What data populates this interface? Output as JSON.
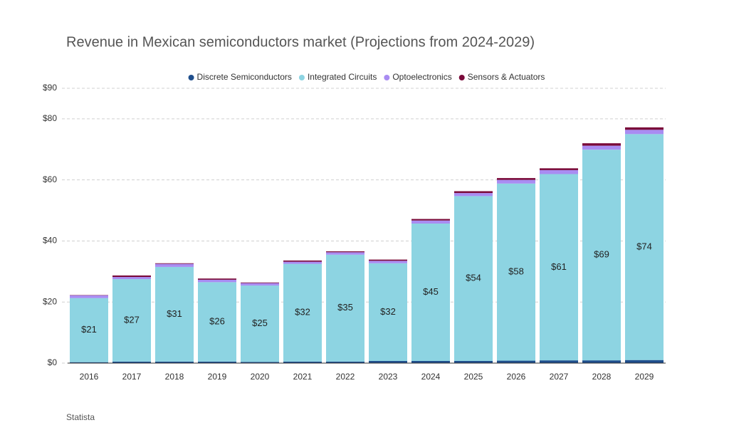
{
  "chart_data": {
    "type": "stacked_bar",
    "title": "Revenue in Mexican semiconductors market (Projections from 2024-2029)",
    "source": "Statista",
    "categories": [
      "2016",
      "2017",
      "2018",
      "2019",
      "2020",
      "2021",
      "2022",
      "2023",
      "2024",
      "2025",
      "2026",
      "2027",
      "2028",
      "2029"
    ],
    "series": [
      {
        "name": "Discrete Semiconductors",
        "color": "#1f4e8c",
        "values": [
          0.3,
          0.5,
          0.5,
          0.5,
          0.4,
          0.5,
          0.5,
          0.7,
          0.7,
          0.7,
          0.8,
          0.9,
          0.9,
          1.0
        ]
      },
      {
        "name": "Integrated Circuits",
        "color": "#8dd4e2",
        "values": [
          21,
          27,
          31,
          26,
          25,
          32,
          35,
          32,
          45,
          54,
          58,
          61,
          69,
          74
        ],
        "value_labels": [
          "$21",
          "$27",
          "$31",
          "$26",
          "$25",
          "$32",
          "$35",
          "$32",
          "$45",
          "$54",
          "$58",
          "$61",
          "$69",
          "$74"
        ]
      },
      {
        "name": "Optoelectronics",
        "color": "#a98cf2",
        "values": [
          0.9,
          0.7,
          1.0,
          0.8,
          0.8,
          0.7,
          0.8,
          0.8,
          1.0,
          1.0,
          1.2,
          1.3,
          1.3,
          1.4
        ]
      },
      {
        "name": "Sensors & Actuators",
        "color": "#7a0a3a",
        "values": [
          0.1,
          0.5,
          0.2,
          0.4,
          0.2,
          0.4,
          0.3,
          0.4,
          0.5,
          0.6,
          0.6,
          0.6,
          0.8,
          0.8
        ]
      }
    ],
    "ylim": [
      0,
      90
    ],
    "yticks": [
      {
        "value": 0,
        "label": "$0"
      },
      {
        "value": 20,
        "label": "$20"
      },
      {
        "value": 40,
        "label": "$40"
      },
      {
        "value": 60,
        "label": "$60"
      },
      {
        "value": 80,
        "label": "$80"
      },
      {
        "value": 90,
        "label": "$90"
      }
    ],
    "grid": true,
    "legend": "top"
  }
}
